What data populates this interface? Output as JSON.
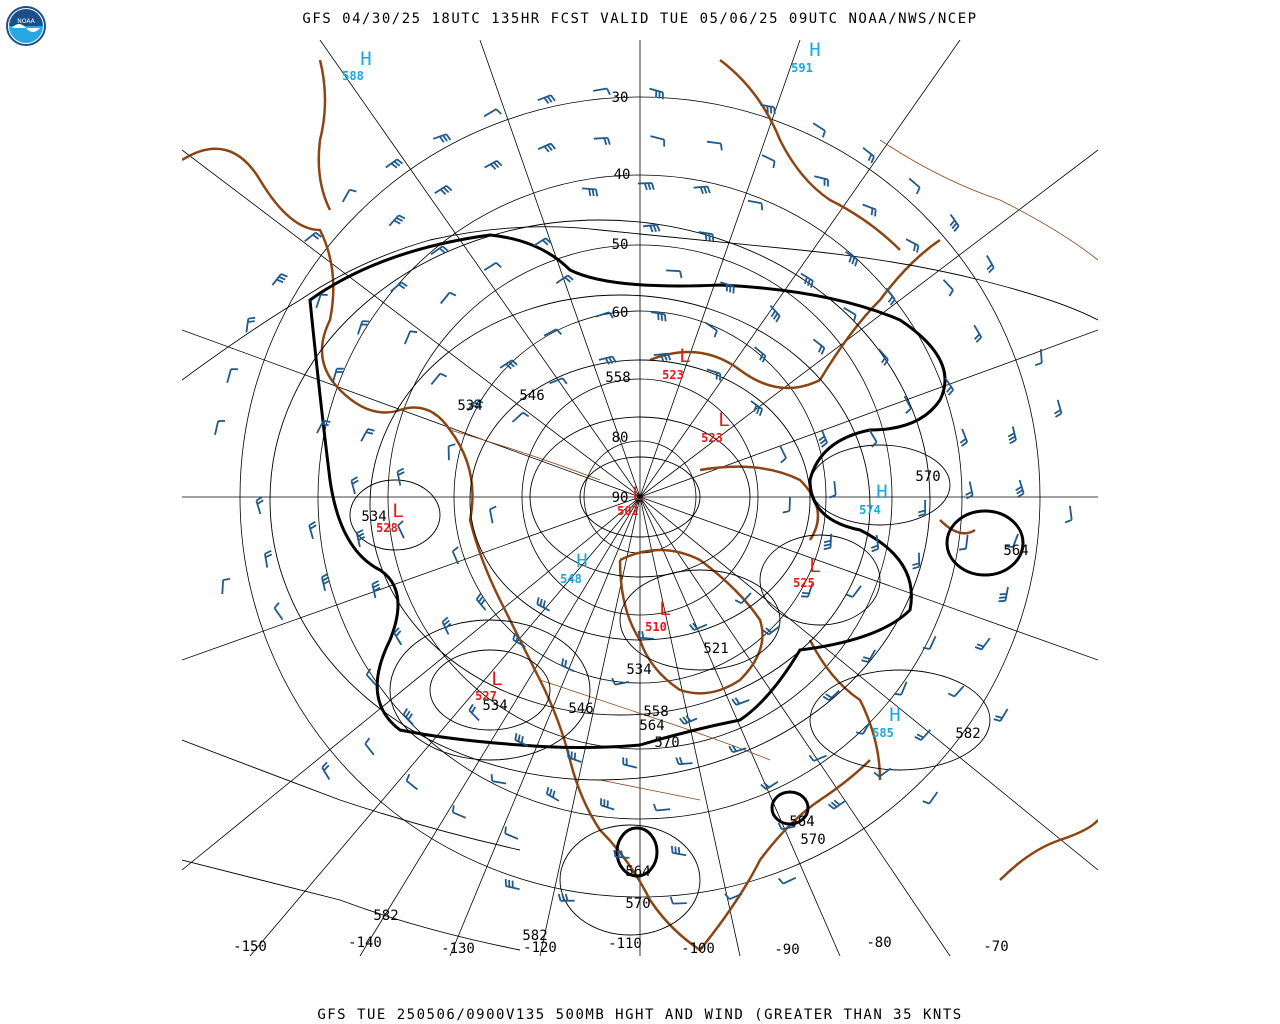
{
  "header": {
    "title": "GFS 04/30/25 18UTC 135HR FCST VALID TUE 05/06/25 09UTC NOAA/NWS/NCEP",
    "caption": "GFS TUE 250506/0900V135 500MB HGHT AND WIND (GREATER THAN 35 KNTS"
  },
  "logo": {
    "text": "NOAA",
    "icon": "noaa-logo-icon"
  },
  "colors": {
    "coastline": "#8b4513",
    "wind_barb": "#1f5a8a",
    "high": "#1aa8e0",
    "low": "#e81818",
    "contour": "#000000"
  },
  "latitude_labels": [
    "30",
    "40",
    "50",
    "60",
    "80",
    "90"
  ],
  "longitude_labels": [
    "-150",
    "-140",
    "-130",
    "-120",
    "-110",
    "-100",
    "-90",
    "-80",
    "-70"
  ],
  "highs": [
    {
      "letter": "H",
      "value": "588"
    },
    {
      "letter": "H",
      "value": "591"
    },
    {
      "letter": "H",
      "value": "574"
    },
    {
      "letter": "H",
      "value": "548"
    },
    {
      "letter": "H",
      "value": "585"
    }
  ],
  "lows": [
    {
      "letter": "L",
      "value": "523"
    },
    {
      "letter": "L",
      "value": "523"
    },
    {
      "letter": "L",
      "value": "528"
    },
    {
      "letter": "L",
      "value": "502"
    },
    {
      "letter": "L",
      "value": "525"
    },
    {
      "letter": "L",
      "value": "510"
    },
    {
      "letter": "L",
      "value": "527"
    }
  ],
  "contour_labels": [
    "534",
    "546",
    "558",
    "534",
    "570",
    "564",
    "534",
    "521",
    "534",
    "546",
    "558",
    "564",
    "570",
    "582",
    "564",
    "570",
    "564",
    "570",
    "582",
    "582"
  ]
}
